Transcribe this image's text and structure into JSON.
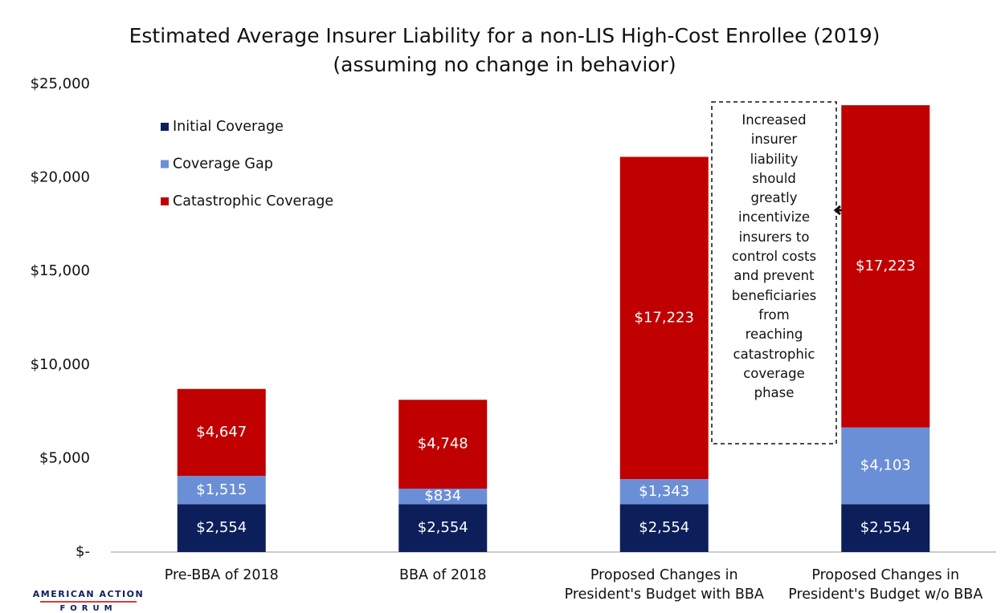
{
  "chart_data": {
    "type": "stacked_bar",
    "title": "Estimated Average Insurer Liability for a non-LIS High-Cost Enrollee (2019)",
    "subtitle": "(assuming no change in behavior)",
    "categories": [
      "Pre-BBA of 2018",
      "BBA of 2018",
      "Proposed Changes in\nPresident's Budget with BBA",
      "Proposed Changes in\nPresident's Budget w/o BBA"
    ],
    "series": [
      {
        "name": "Initial Coverage",
        "color": "#0c1f5b",
        "values": [
          2554,
          2554,
          2554,
          2554
        ],
        "value_labels": [
          "$2,554",
          "$2,554",
          "$2,554",
          "$2,554"
        ]
      },
      {
        "name": "Coverage Gap",
        "color": "#6b8fd6",
        "values": [
          1515,
          834,
          1343,
          4103
        ],
        "value_labels": [
          "$1,515",
          "$834",
          "$1,343",
          "$4,103"
        ]
      },
      {
        "name": "Catastrophic Coverage",
        "color": "#c00000",
        "values": [
          4647,
          4748,
          17223,
          17223
        ],
        "value_labels": [
          "$4,647",
          "$4,748",
          "$17,223",
          "$17,223"
        ]
      }
    ],
    "ylim": [
      0,
      25000
    ],
    "yticks": [
      {
        "value": 0,
        "label": "$-"
      },
      {
        "value": 5000,
        "label": "$5,000"
      },
      {
        "value": 10000,
        "label": "$10,000"
      },
      {
        "value": 15000,
        "label": "$15,000"
      },
      {
        "value": 20000,
        "label": "$20,000"
      },
      {
        "value": 25000,
        "label": "$25,000"
      }
    ],
    "legend": "upper left",
    "annotation": "Increased\ninsurer\nliability\nshould\ngreatly\nincentivize\ninsurers to\ncontrol costs\nand prevent\nbeneficiaries\nfrom\nreaching\ncatastrophic\ncoverage\nphase",
    "logo": [
      "AMERICAN ACTION",
      "FORUM"
    ]
  }
}
